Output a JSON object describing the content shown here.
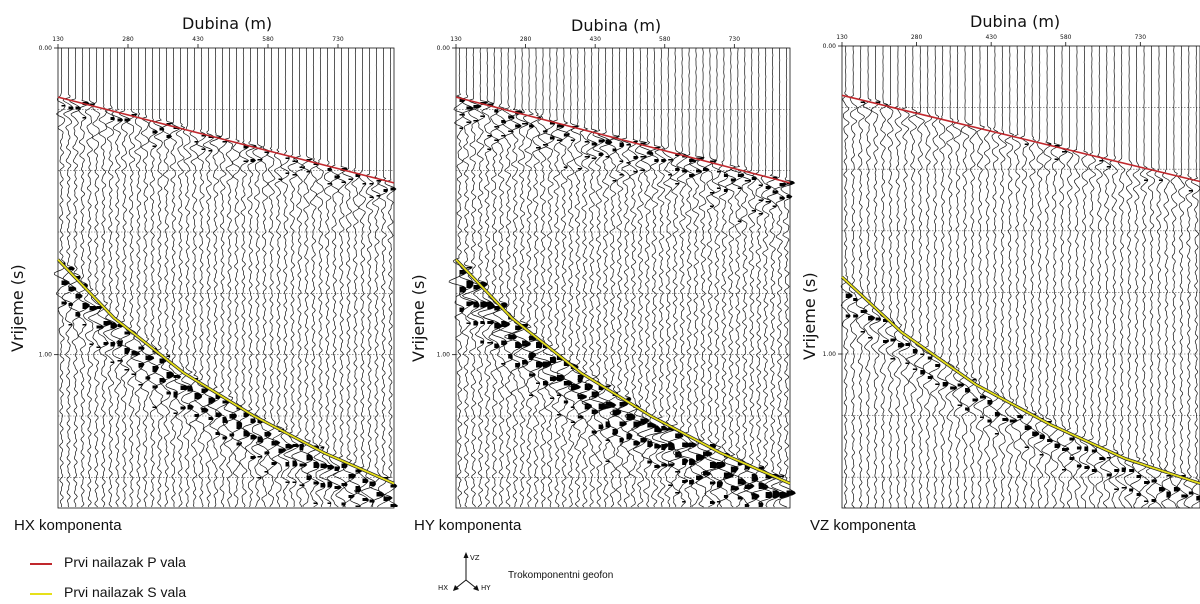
{
  "chart_data": [
    {
      "type": "line",
      "title": "",
      "component_label": "HX komponenta",
      "xlabel": "Dubina (m)",
      "ylabel": "Vrijeme (s)",
      "x_ticks": [
        "130",
        "280",
        "430",
        "580",
        "730"
      ],
      "y_ticks": [
        "0.00",
        "1.00"
      ],
      "xlim": [
        130,
        850
      ],
      "ylim": [
        0,
        1.5
      ],
      "y_inverted": true,
      "grid": true,
      "legend": "none",
      "trace_amplitude": 0.8,
      "series": [
        {
          "name": "Prvi nailazak P vala",
          "color": "#c0282d",
          "x": [
            130,
            850
          ],
          "y": [
            0.16,
            0.44
          ]
        },
        {
          "name": "Prvi nailazak S vala",
          "color": "#e6e01a",
          "x": [
            130,
            250,
            400,
            550,
            700,
            850
          ],
          "y": [
            0.69,
            0.88,
            1.06,
            1.2,
            1.32,
            1.42
          ]
        }
      ]
    },
    {
      "type": "line",
      "title": "",
      "component_label": "HY komponenta",
      "xlabel": "Dubina (m)",
      "ylabel": "Vrijeme (s)",
      "x_ticks": [
        "130",
        "280",
        "430",
        "580",
        "730"
      ],
      "y_ticks": [
        "0.00",
        "1.00"
      ],
      "xlim": [
        130,
        850
      ],
      "ylim": [
        0,
        1.5
      ],
      "y_inverted": true,
      "grid": true,
      "legend": "none",
      "trace_amplitude": 1.0,
      "series": [
        {
          "name": "Prvi nailazak P vala",
          "color": "#c0282d",
          "x": [
            130,
            850
          ],
          "y": [
            0.16,
            0.44
          ]
        },
        {
          "name": "Prvi nailazak S vala",
          "color": "#e6e01a",
          "x": [
            130,
            250,
            400,
            550,
            700,
            850
          ],
          "y": [
            0.69,
            0.88,
            1.06,
            1.2,
            1.32,
            1.42
          ]
        }
      ]
    },
    {
      "type": "line",
      "title": "",
      "component_label": "VZ komponenta",
      "xlabel": "Dubina (m)",
      "ylabel": "Vrijeme (s)",
      "x_ticks": [
        "130",
        "280",
        "430",
        "580",
        "730"
      ],
      "y_ticks": [
        "0.00",
        "1.00"
      ],
      "xlim": [
        130,
        850
      ],
      "ylim": [
        0,
        1.5
      ],
      "y_inverted": true,
      "grid": true,
      "legend": "none",
      "trace_amplitude": 0.6,
      "series": [
        {
          "name": "Prvi nailazak P vala",
          "color": "#c0282d",
          "x": [
            130,
            850
          ],
          "y": [
            0.16,
            0.44
          ]
        },
        {
          "name": "Prvi nailazak S vala",
          "color": "#e6e01a",
          "x": [
            130,
            250,
            400,
            550,
            700,
            850
          ],
          "y": [
            0.75,
            0.93,
            1.1,
            1.23,
            1.34,
            1.42
          ]
        }
      ]
    }
  ],
  "legend": {
    "items": [
      {
        "label": "Prvi nailazak P vala",
        "color": "#c0282d"
      },
      {
        "label": "Prvi nailazak S vala",
        "color": "#e6e01a"
      }
    ]
  },
  "geofon": {
    "title": "Trokomponentni geofon",
    "axes": [
      "VZ",
      "HX",
      "HY"
    ]
  }
}
